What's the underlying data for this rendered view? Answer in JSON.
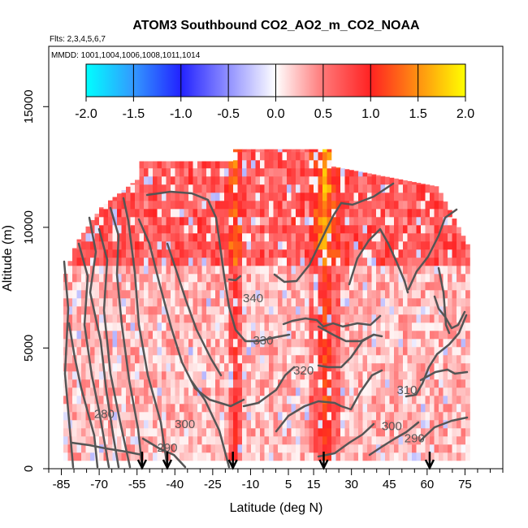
{
  "chart_data": {
    "type": "heatmap",
    "title": "ATOM3 Southbound CO2_AO2_m_CO2_NOAA",
    "subtitle": "Flts: 2,3,4,5,6,7",
    "mmdd_label": "MMDD: 1001,1004,1006,1008,1011,1014",
    "xlabel": "Latitude (deg N)",
    "ylabel": "Altitude (m)",
    "xlim": [
      -90,
      90
    ],
    "ylim": [
      0,
      17500
    ],
    "xtick_labels": [
      "-85",
      "-70",
      "-55",
      "-40",
      "-25",
      "-10",
      "5",
      "15",
      "30",
      "45",
      "60",
      "75"
    ],
    "ytick_labels": [
      "0",
      "5000",
      "10000",
      "15000"
    ],
    "colorbar": {
      "range": [
        -2.0,
        2.0
      ],
      "tick_labels": [
        "-2.0",
        "-1.5",
        "-1.0",
        "-0.5",
        "0.0",
        "0.5",
        "1.0",
        "1.5",
        "2.0"
      ],
      "colors": [
        "#00ffff",
        "#3399ff",
        "#2222ff",
        "#ffffff",
        "#ff7777",
        "#ff2222",
        "#ffff00"
      ]
    },
    "flight_marker_latitudes": [
      -53,
      -43,
      -17,
      19,
      61
    ],
    "contour_labels": [
      {
        "text": "340",
        "lat": -9,
        "alt": 6900
      },
      {
        "text": "330",
        "lat": -5,
        "alt": 5150
      },
      {
        "text": "320",
        "lat": 11,
        "alt": 3900
      },
      {
        "text": "310",
        "lat": 52,
        "alt": 3100
      },
      {
        "text": "300",
        "lat": -36,
        "alt": 1680
      },
      {
        "text": "300",
        "lat": 46,
        "alt": 1600
      },
      {
        "text": "290",
        "lat": -43,
        "alt": 700
      },
      {
        "text": "290",
        "lat": 55,
        "alt": 1100
      },
      {
        "text": "280",
        "lat": -68,
        "alt": 2100
      }
    ]
  }
}
